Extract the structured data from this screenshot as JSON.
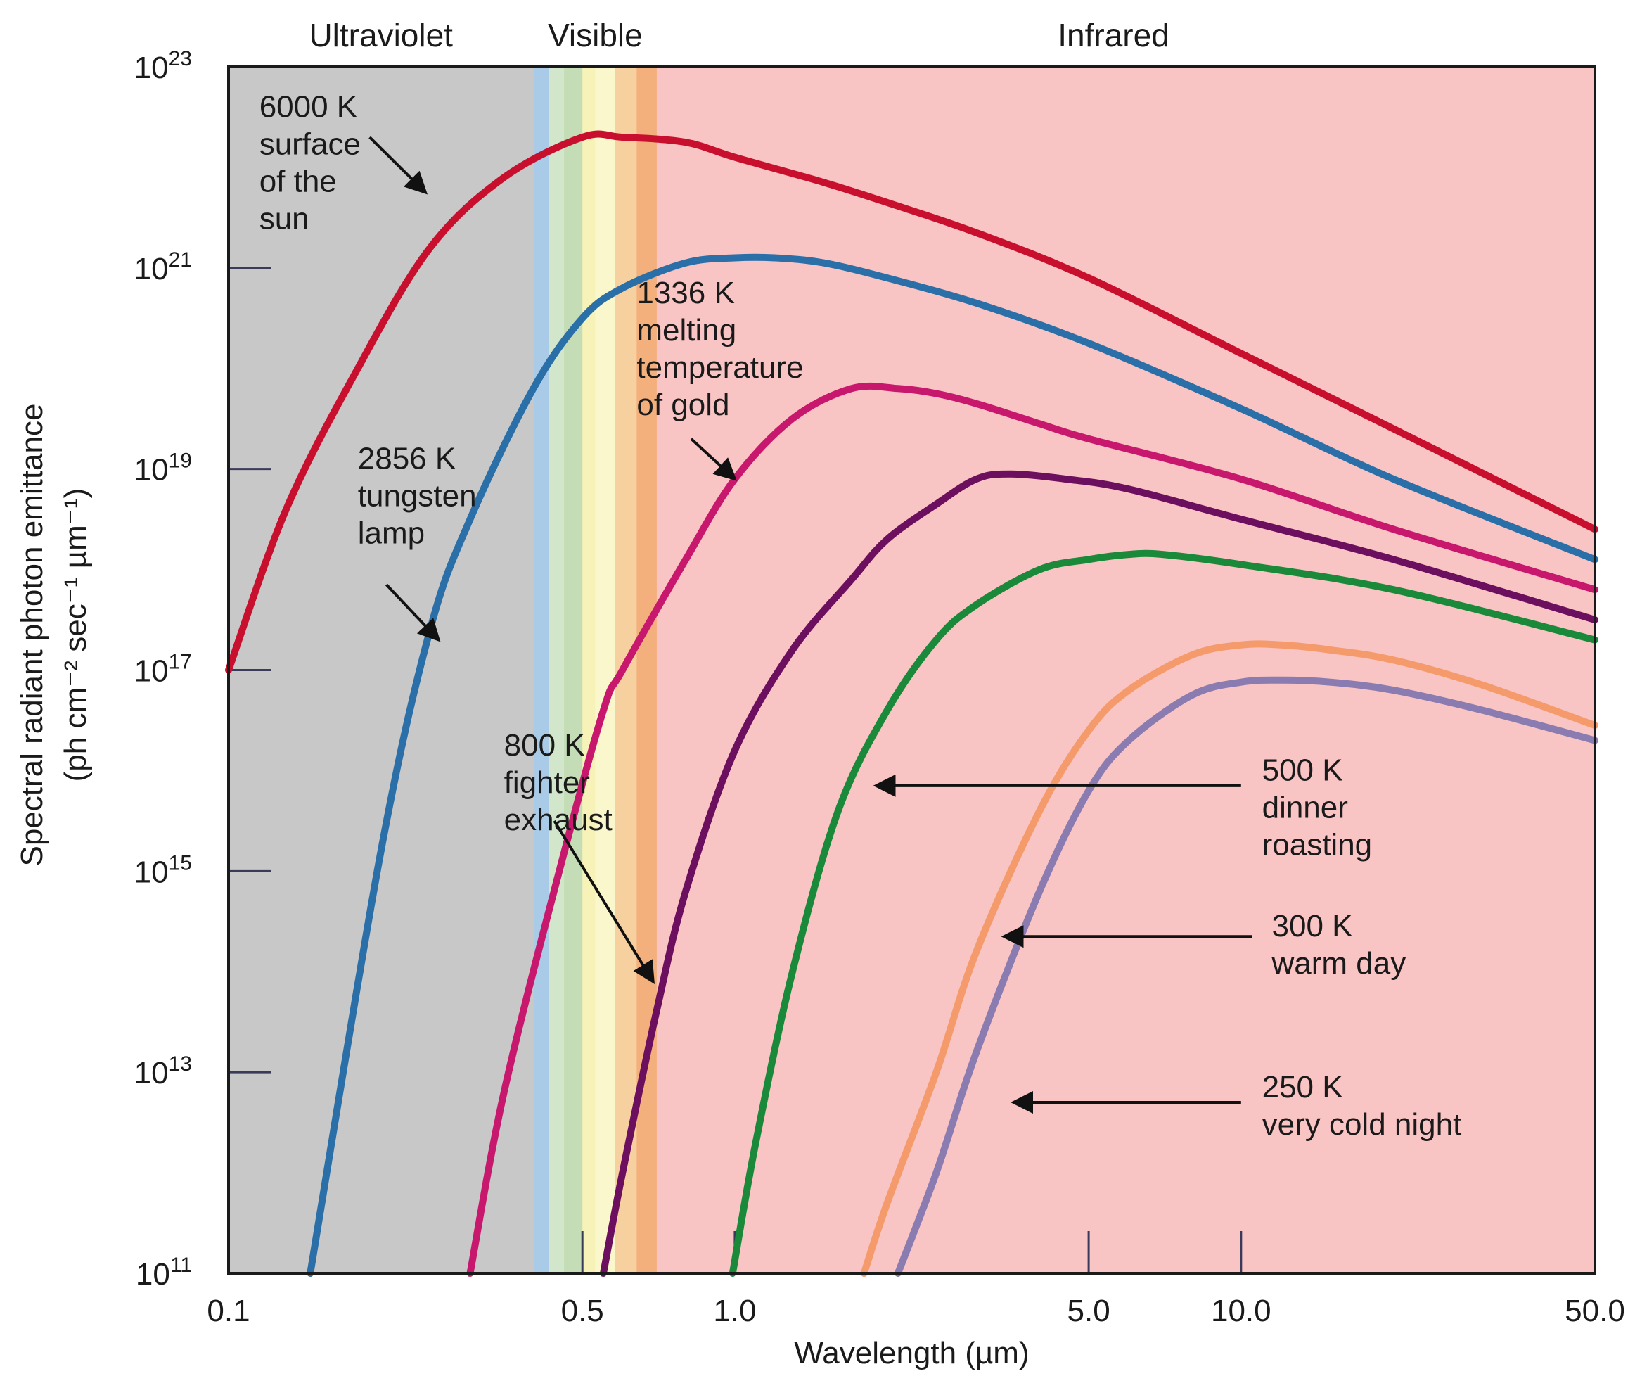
{
  "chart_data": {
    "type": "line",
    "title": "",
    "xlabel": "Wavelength (µm)",
    "ylabel": "Spectral radiant photon emittance",
    "ylabel_units": "(ph cm⁻² sec⁻¹ µm⁻¹)",
    "x_scale": "log",
    "y_scale": "log",
    "xlim": [
      0.1,
      50.0
    ],
    "ylim_exponent": [
      11,
      23
    ],
    "x_ticks": [
      "0.1",
      "0.5",
      "1.0",
      "5.0",
      "10.0",
      "50.0"
    ],
    "x_tick_values": [
      0.1,
      0.5,
      1.0,
      5.0,
      10.0,
      50.0
    ],
    "y_tick_exponents": [
      23,
      21,
      19,
      17,
      15,
      13,
      11
    ],
    "y_tick_base": "10",
    "bands": [
      {
        "label": "Ultraviolet",
        "from": 0.1,
        "to": 0.4,
        "color": "#c8c8c8"
      },
      {
        "label": "Visible",
        "from": 0.4,
        "to": 0.7,
        "color": "#dce8f4"
      },
      {
        "label": "Infrared",
        "from": 0.7,
        "to": 50.0,
        "color": "#f9c4c4"
      }
    ],
    "visible_stripes": [
      {
        "from": 0.4,
        "to": 0.43,
        "color": "#a9cbe8"
      },
      {
        "from": 0.43,
        "to": 0.46,
        "color": "#d2e6cc"
      },
      {
        "from": 0.46,
        "to": 0.5,
        "color": "#c4ddb6"
      },
      {
        "from": 0.5,
        "to": 0.53,
        "color": "#f6f2b8"
      },
      {
        "from": 0.53,
        "to": 0.58,
        "color": "#fbf7cc"
      },
      {
        "from": 0.58,
        "to": 0.64,
        "color": "#f7d0a0"
      },
      {
        "from": 0.64,
        "to": 0.7,
        "color": "#f4b07c"
      }
    ],
    "series": [
      {
        "temperature": "6000 K",
        "color": "#c8102e",
        "x": [
          0.1,
          0.13,
          0.18,
          0.25,
          0.35,
          0.5,
          0.6,
          0.8,
          1.0,
          1.5,
          2.0,
          3.0,
          5.0,
          10.0,
          20.0,
          50.0
        ],
        "log_y": [
          17.0,
          18.6,
          20.0,
          21.2,
          21.9,
          22.3,
          22.3,
          22.25,
          22.1,
          21.85,
          21.65,
          21.35,
          20.9,
          20.15,
          19.4,
          18.4
        ]
      },
      {
        "temperature": "2856 K",
        "color": "#2a6fa8",
        "x": [
          0.145,
          0.2,
          0.25,
          0.3,
          0.4,
          0.5,
          0.6,
          0.8,
          1.0,
          1.2,
          1.5,
          2.0,
          3.0,
          5.0,
          10.0,
          20.0,
          50.0
        ],
        "log_y": [
          11.0,
          15.2,
          17.4,
          18.5,
          19.8,
          20.5,
          20.8,
          21.05,
          21.1,
          21.1,
          21.05,
          20.9,
          20.65,
          20.25,
          19.6,
          18.9,
          18.1
        ]
      },
      {
        "temperature": "1336 K",
        "color": "#c8186e",
        "x": [
          0.3,
          0.35,
          0.45,
          0.55,
          0.6,
          0.8,
          1.0,
          1.3,
          1.7,
          2.1,
          2.5,
          3.0,
          4.0,
          5.0,
          10.0,
          20.0,
          50.0
        ],
        "log_y": [
          11.0,
          12.8,
          15.0,
          16.6,
          17.0,
          18.1,
          18.9,
          19.5,
          19.8,
          19.8,
          19.75,
          19.65,
          19.45,
          19.3,
          18.9,
          18.4,
          17.8
        ]
      },
      {
        "temperature": "800 K",
        "color": "#6b0f5e",
        "x": [
          0.55,
          0.6,
          0.7,
          0.8,
          1.0,
          1.3,
          1.7,
          2.0,
          2.5,
          3.0,
          3.5,
          4.5,
          6.0,
          10.0,
          20.0,
          50.0
        ],
        "log_y": [
          11.0,
          12.0,
          13.6,
          14.8,
          16.2,
          17.2,
          17.9,
          18.3,
          18.65,
          18.9,
          18.95,
          18.9,
          18.8,
          18.5,
          18.1,
          17.5
        ]
      },
      {
        "temperature": "500 K",
        "color": "#1a8a3a",
        "x": [
          0.99,
          1.1,
          1.3,
          1.6,
          2.0,
          2.5,
          3.0,
          4.0,
          5.0,
          6.0,
          7.0,
          10.0,
          20.0,
          50.0
        ],
        "log_y": [
          11.0,
          12.3,
          14.0,
          15.6,
          16.6,
          17.3,
          17.65,
          18.0,
          18.1,
          18.15,
          18.15,
          18.05,
          17.8,
          17.3
        ]
      },
      {
        "temperature": "300 K",
        "color": "#f59a6b",
        "x": [
          1.8,
          2.0,
          2.5,
          3.0,
          4.0,
          5.0,
          6.0,
          8.0,
          10.0,
          12.0,
          15.0,
          20.0,
          30.0,
          50.0
        ],
        "log_y": [
          11.0,
          11.7,
          13.0,
          14.2,
          15.6,
          16.4,
          16.8,
          17.15,
          17.25,
          17.25,
          17.2,
          17.1,
          16.85,
          16.45
        ]
      },
      {
        "temperature": "250 K",
        "color": "#8a7bb0",
        "x": [
          2.1,
          2.5,
          3.0,
          4.0,
          5.0,
          6.0,
          8.0,
          10.0,
          12.0,
          15.0,
          20.0,
          30.0,
          50.0
        ],
        "log_y": [
          11.0,
          12.0,
          13.2,
          14.8,
          15.8,
          16.3,
          16.75,
          16.88,
          16.9,
          16.88,
          16.8,
          16.6,
          16.3
        ]
      }
    ],
    "annotations": [
      {
        "lines": [
          "6000 K",
          "surface",
          "of the",
          "sun"
        ],
        "x": 0.115,
        "log_y": 22.5,
        "arrow_from": [
          0.19,
          22.3
        ],
        "arrow_to": [
          0.245,
          21.75
        ]
      },
      {
        "lines": [
          "2856 K",
          "tungsten",
          "lamp"
        ],
        "x": 0.18,
        "log_y": 19.0,
        "arrow_from": [
          0.205,
          17.85
        ],
        "arrow_to": [
          0.26,
          17.3
        ]
      },
      {
        "lines": [
          "1336 K",
          "melting",
          "temperature",
          "of gold"
        ],
        "x": 0.64,
        "log_y": 20.65,
        "arrow_from": [
          0.82,
          19.3
        ],
        "arrow_to": [
          1.0,
          18.9
        ]
      },
      {
        "lines": [
          "800 K",
          "fighter",
          "exhaust"
        ],
        "x": 0.35,
        "log_y": 16.15,
        "arrow_from": [
          0.44,
          15.5
        ],
        "arrow_to": [
          0.69,
          13.9
        ]
      },
      {
        "lines": [
          "500 K",
          "dinner",
          "roasting"
        ],
        "x": 11.0,
        "log_y": 15.9,
        "arrow_from": [
          10.0,
          15.85
        ],
        "arrow_to": [
          1.9,
          15.85
        ]
      },
      {
        "lines": [
          "300 K",
          "warm day"
        ],
        "x": 11.5,
        "log_y": 14.35,
        "arrow_from": [
          10.5,
          14.35
        ],
        "arrow_to": [
          3.4,
          14.35
        ]
      },
      {
        "lines": [
          "250 K",
          "very cold night"
        ],
        "x": 11.0,
        "log_y": 12.75,
        "arrow_from": [
          10.0,
          12.7
        ],
        "arrow_to": [
          3.55,
          12.7
        ]
      }
    ]
  }
}
